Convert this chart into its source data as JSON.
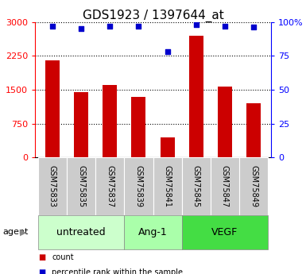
{
  "title": "GDS1923 / 1397644_at",
  "samples": [
    "GSM75833",
    "GSM75835",
    "GSM75837",
    "GSM75839",
    "GSM75841",
    "GSM75845",
    "GSM75847",
    "GSM75849"
  ],
  "counts": [
    2150,
    1450,
    1600,
    1350,
    450,
    2700,
    1575,
    1200
  ],
  "percentiles": [
    97,
    95,
    97,
    97,
    78,
    98,
    97,
    96
  ],
  "ylim_left": [
    0,
    3000
  ],
  "ylim_right": [
    0,
    100
  ],
  "yticks_left": [
    0,
    750,
    1500,
    2250,
    3000
  ],
  "yticks_right": [
    0,
    25,
    50,
    75,
    100
  ],
  "ytick_labels_left": [
    "0",
    "750",
    "1500",
    "2250",
    "3000"
  ],
  "ytick_labels_right": [
    "0",
    "25",
    "50",
    "75",
    "100%"
  ],
  "groups": [
    {
      "label": "untreated",
      "start": 0,
      "end": 3,
      "color": "#ccffcc"
    },
    {
      "label": "Ang-1",
      "start": 3,
      "end": 5,
      "color": "#aaffaa"
    },
    {
      "label": "VEGF",
      "start": 5,
      "end": 8,
      "color": "#44dd44"
    }
  ],
  "bar_color": "#cc0000",
  "dot_color": "#0000cc",
  "bar_width": 0.5,
  "background_color": "#ffffff",
  "tick_area_color": "#cccccc",
  "agent_label": "agent",
  "legend_count_label": "count",
  "legend_percentile_label": "percentile rank within the sample",
  "title_fontsize": 11,
  "axis_fontsize": 8,
  "sample_fontsize": 7,
  "group_label_fontsize": 9
}
